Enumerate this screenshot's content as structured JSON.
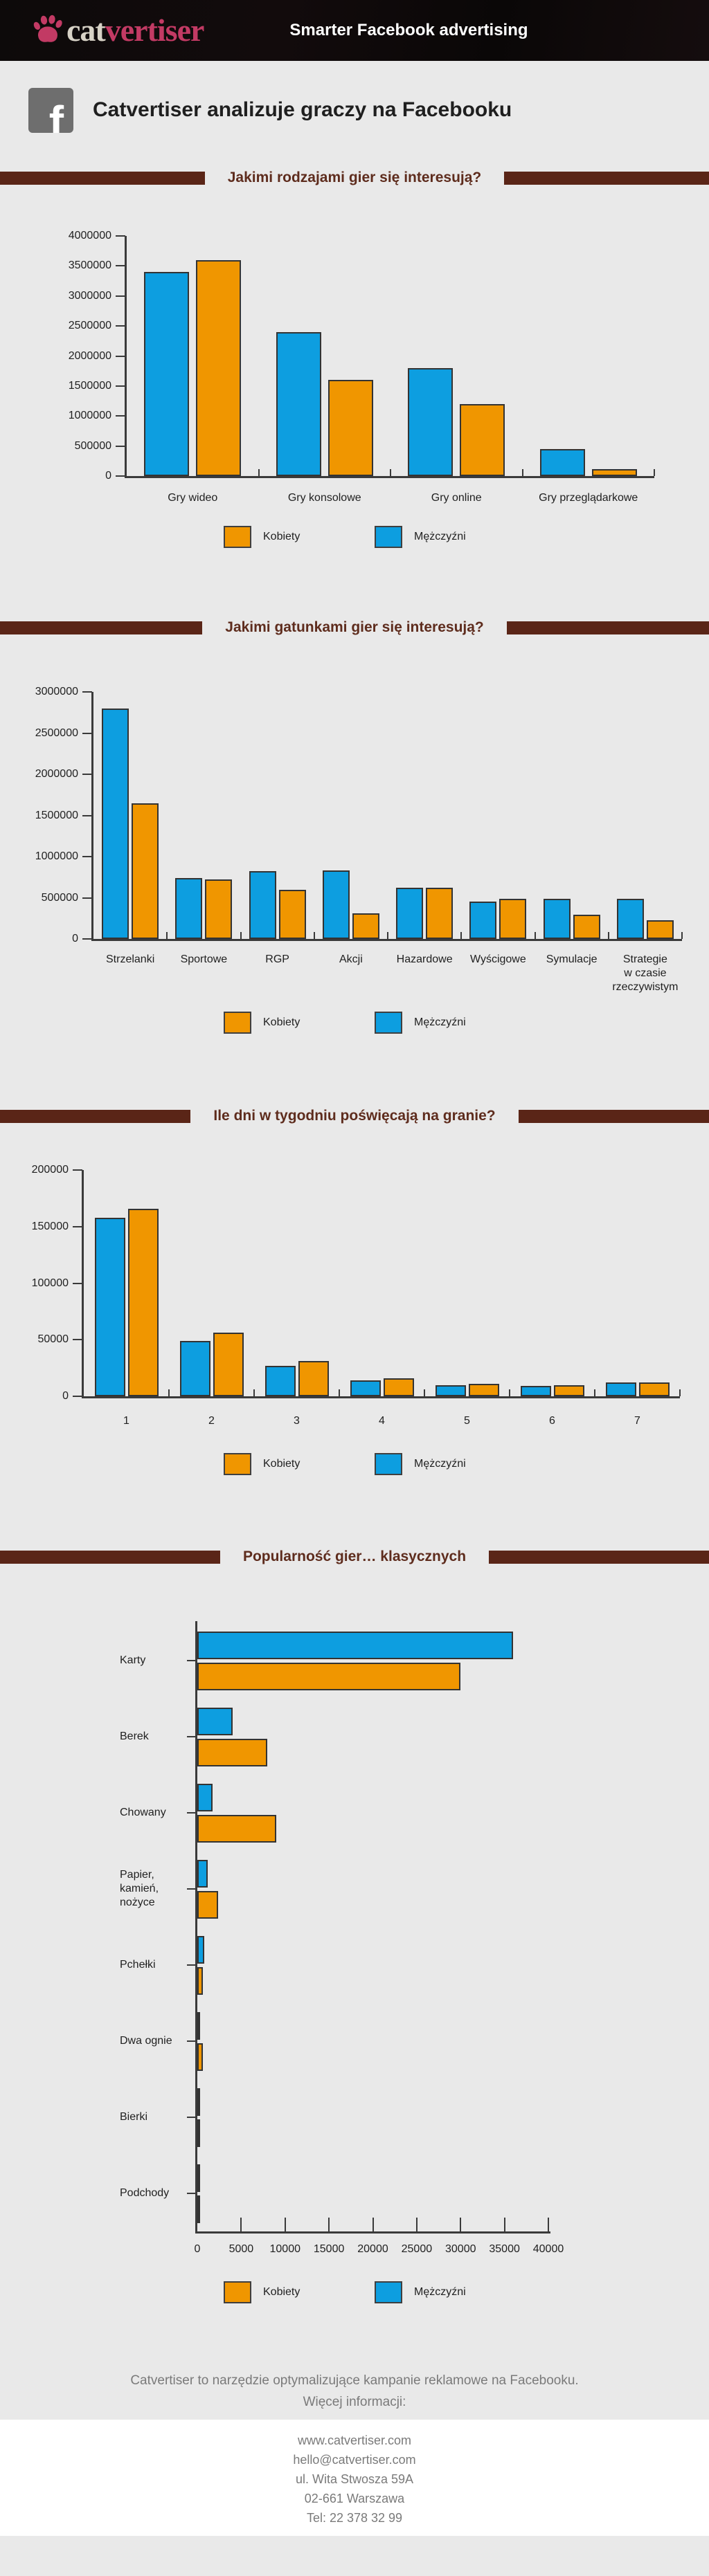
{
  "header": {
    "logo_cat": "cat",
    "logo_vertiser": "vertiser",
    "tagline": "Smarter Facebook advertising"
  },
  "hero": {
    "title": "Catvertiser analizuje graczy na Facebooku",
    "facebook_glyph": "f"
  },
  "legend": {
    "items": [
      {
        "label": "Kobiety",
        "color_key": "kobiety"
      },
      {
        "label": "Mężczyźni",
        "color_key": "mezczyzni"
      }
    ]
  },
  "colors": {
    "kobiety": "#f09600",
    "mezczyzni": "#0d9ee0",
    "brown": "#5a2517",
    "brown_text": "#5e2c1d",
    "background": "#e9e9e9",
    "header_bg": "#0d0a0a",
    "logo_pink": "#c23a64",
    "logo_beige": "#d7d2c6",
    "axis": "#3a3a3a",
    "bar_outline": "#333333",
    "text_dark": "#1f1f1f",
    "footer_gray": "#7a7a7a",
    "facebook_gray": "#6e6e6e",
    "white": "#ffffff"
  },
  "chart_data": [
    {
      "type": "bar",
      "title": "Jakimi rodzajami gier się interesują?",
      "categories": [
        "Gry wideo",
        "Gry konsolowe",
        "Gry online",
        "Gry przeglądarkowe"
      ],
      "series": [
        {
          "name": "Mężczyźni",
          "color_key": "mezczyzni",
          "values": [
            3400000,
            2400000,
            1800000,
            450000
          ]
        },
        {
          "name": "Kobiety",
          "color_key": "kobiety",
          "values": [
            3600000,
            1600000,
            1200000,
            120000
          ]
        }
      ],
      "ylim": [
        0,
        4000000
      ],
      "ytick_step": 500000,
      "grid": false,
      "legend_position": "bottom"
    },
    {
      "type": "bar",
      "title": "Jakimi gatunkami gier się interesują?",
      "categories": [
        "Strzelanki",
        "Sportowe",
        "RGP",
        "Akcji",
        "Hazardowe",
        "Wyścigowe",
        "Symulacje",
        "Strategie\nw czasie\nrzeczywistym"
      ],
      "series": [
        {
          "name": "Mężczyźni",
          "color_key": "mezczyzni",
          "values": [
            2800000,
            740000,
            820000,
            830000,
            620000,
            450000,
            490000,
            490000
          ]
        },
        {
          "name": "Kobiety",
          "color_key": "kobiety",
          "values": [
            1650000,
            720000,
            600000,
            310000,
            620000,
            490000,
            290000,
            230000
          ]
        }
      ],
      "ylim": [
        0,
        3000000
      ],
      "ytick_step": 500000,
      "grid": false,
      "legend_position": "bottom"
    },
    {
      "type": "bar",
      "title": "Ile dni w tygodniu poświęcają na granie?",
      "categories": [
        "1",
        "2",
        "3",
        "4",
        "5",
        "6",
        "7"
      ],
      "series": [
        {
          "name": "Mężczyźni",
          "color_key": "mezczyzni",
          "values": [
            158000,
            49000,
            27000,
            14000,
            10000,
            9000,
            12000
          ]
        },
        {
          "name": "Kobiety",
          "color_key": "kobiety",
          "values": [
            166000,
            56000,
            31000,
            16000,
            11000,
            10000,
            12000
          ]
        }
      ],
      "ylim": [
        0,
        200000
      ],
      "ytick_step": 50000,
      "grid": false,
      "legend_position": "bottom"
    },
    {
      "type": "bar-horizontal",
      "title": "Popularność gier… klasycznych",
      "categories": [
        "Karty",
        "Berek",
        "Chowany",
        "Papier,\nkamień,\nnożyce",
        "Pchełki",
        "Dwa ognie",
        "Bierki",
        "Podchody"
      ],
      "series": [
        {
          "name": "Mężczyźni",
          "color_key": "mezczyzni",
          "values": [
            36000,
            4000,
            1700,
            1200,
            800,
            300,
            200,
            50
          ]
        },
        {
          "name": "Kobiety",
          "color_key": "kobiety",
          "values": [
            30000,
            8000,
            9000,
            2400,
            600,
            600,
            80,
            30
          ]
        }
      ],
      "xlim": [
        0,
        40000
      ],
      "xtick_step": 5000,
      "grid": false,
      "legend_position": "bottom"
    }
  ],
  "footer": {
    "line1": "Catvertiser to narzędzie optymalizujące kampanie reklamowe na Facebooku.",
    "line2": "Więcej informacji:",
    "contact": [
      "www.catvertiser.com",
      "hello@catvertiser.com",
      "ul. Wita Stwosza 59A",
      "02-661 Warszawa",
      "Tel: 22 378 32 99"
    ]
  }
}
